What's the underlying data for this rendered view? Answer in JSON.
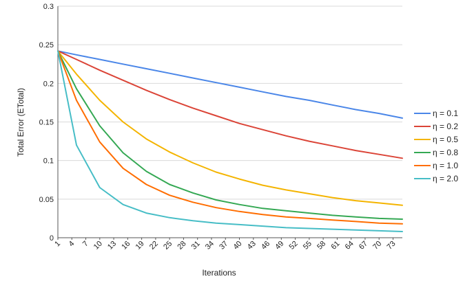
{
  "chart_data": {
    "type": "line",
    "title": "",
    "xlabel": "Iterations",
    "ylabel": "Total Error (ETotal)",
    "ylim": [
      0,
      0.3
    ],
    "yticks": [
      "0",
      "0.05",
      "0.1",
      "0.15",
      "0.2",
      "0.25",
      "0.3"
    ],
    "x_range": [
      1,
      75
    ],
    "xticks": [
      "1",
      "4",
      "7",
      "10",
      "13",
      "16",
      "19",
      "22",
      "25",
      "28",
      "31",
      "34",
      "37",
      "40",
      "43",
      "46",
      "49",
      "52",
      "55",
      "58",
      "61",
      "64",
      "67",
      "70",
      "73"
    ],
    "grid": "horizontal",
    "legend": "right",
    "x": [
      1,
      5,
      10,
      15,
      20,
      25,
      30,
      35,
      40,
      45,
      50,
      55,
      60,
      65,
      70,
      75
    ],
    "series": [
      {
        "name": "η = 0.1",
        "color": "#4a86e8",
        "values": [
          0.242,
          0.237,
          0.231,
          0.225,
          0.219,
          0.213,
          0.207,
          0.201,
          0.195,
          0.189,
          0.183,
          0.178,
          0.172,
          0.166,
          0.161,
          0.155
        ]
      },
      {
        "name": "η = 0.2",
        "color": "#db4437",
        "values": [
          0.242,
          0.231,
          0.217,
          0.204,
          0.191,
          0.179,
          0.168,
          0.158,
          0.148,
          0.14,
          0.132,
          0.125,
          0.119,
          0.113,
          0.108,
          0.103
        ]
      },
      {
        "name": "η = 0.5",
        "color": "#f4b400",
        "values": [
          0.242,
          0.212,
          0.178,
          0.15,
          0.128,
          0.111,
          0.097,
          0.085,
          0.076,
          0.068,
          0.062,
          0.057,
          0.052,
          0.048,
          0.045,
          0.042
        ]
      },
      {
        "name": "η = 0.8",
        "color": "#34a853",
        "values": [
          0.242,
          0.193,
          0.145,
          0.11,
          0.086,
          0.069,
          0.058,
          0.049,
          0.043,
          0.038,
          0.035,
          0.032,
          0.029,
          0.027,
          0.025,
          0.024
        ]
      },
      {
        "name": "η = 1.0",
        "color": "#ff6d00",
        "values": [
          0.242,
          0.178,
          0.124,
          0.09,
          0.069,
          0.055,
          0.046,
          0.039,
          0.034,
          0.03,
          0.027,
          0.025,
          0.023,
          0.021,
          0.019,
          0.018
        ]
      },
      {
        "name": "η = 2.0",
        "color": "#46bdc6",
        "values": [
          0.242,
          0.12,
          0.065,
          0.043,
          0.032,
          0.026,
          0.022,
          0.019,
          0.017,
          0.015,
          0.013,
          0.012,
          0.011,
          0.01,
          0.009,
          0.008
        ]
      }
    ]
  }
}
